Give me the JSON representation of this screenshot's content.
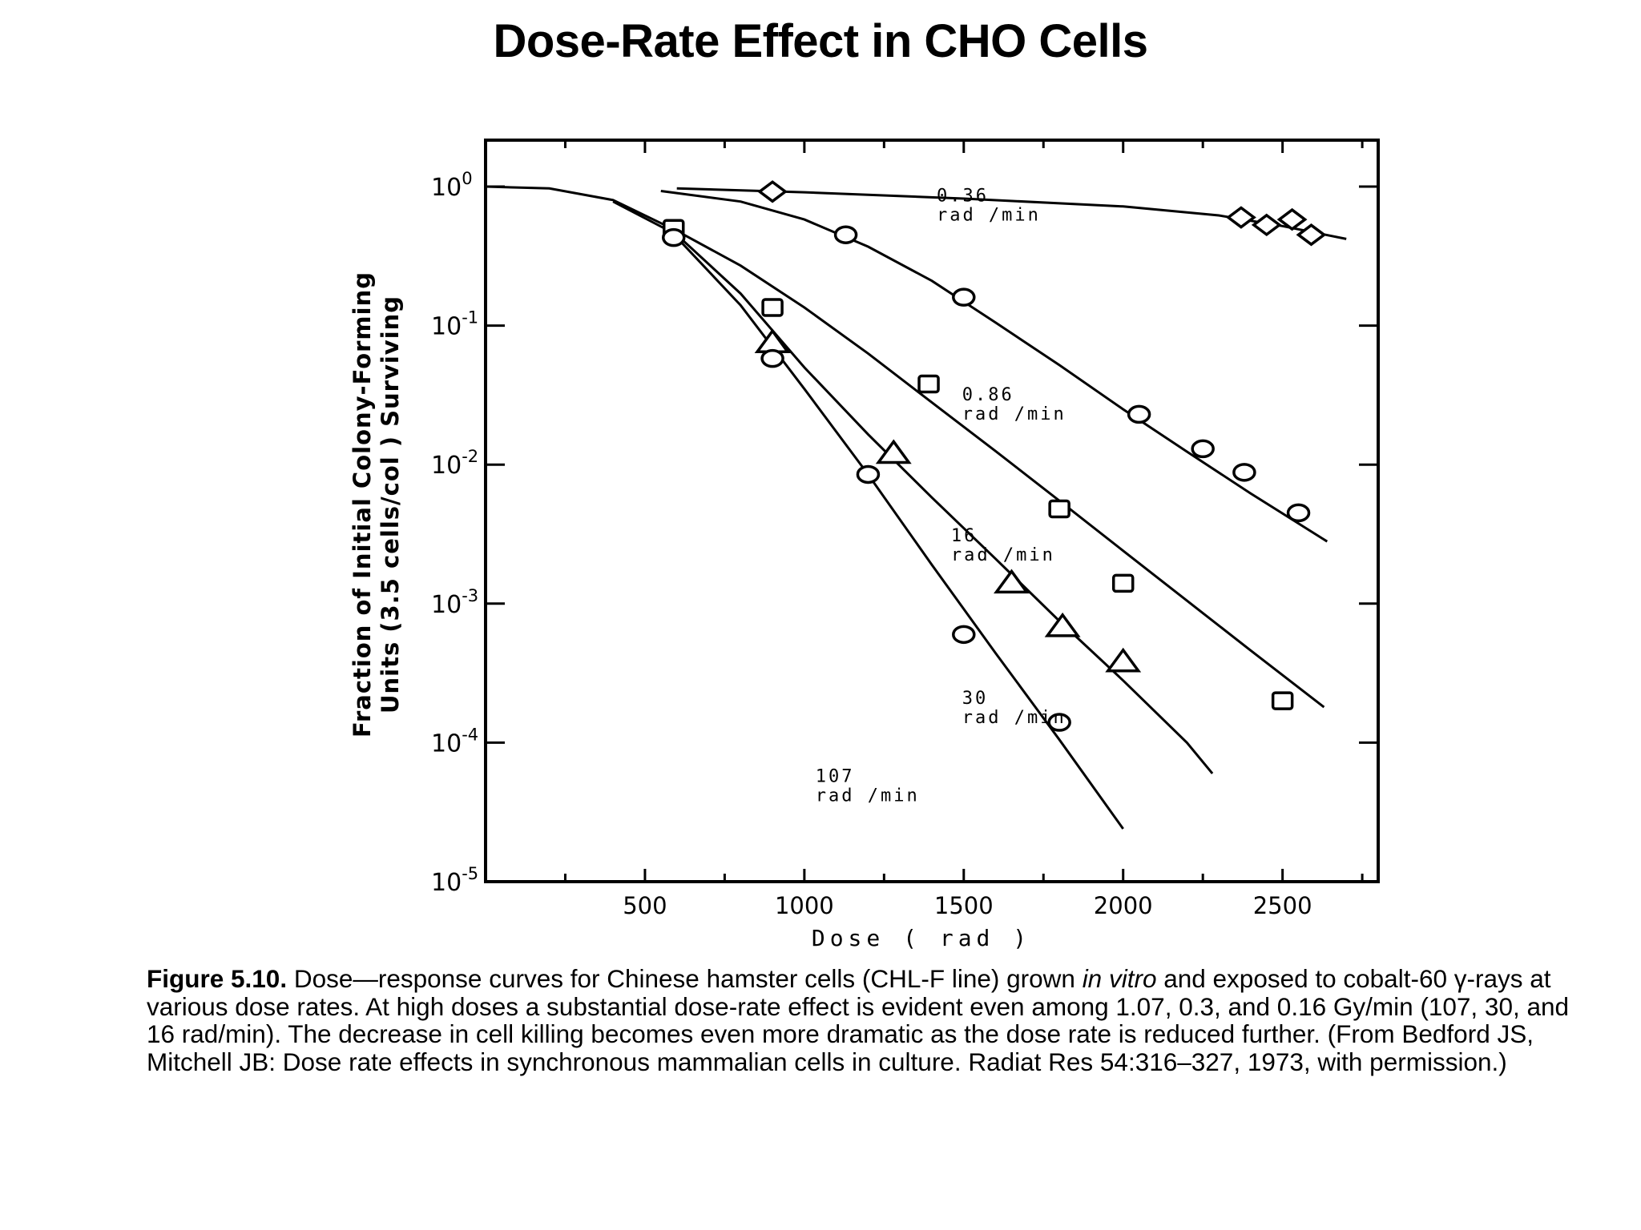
{
  "slide": {
    "title": "Dose-Rate Effect in CHO Cells"
  },
  "caption": {
    "lead": "Figure 5.10.",
    "text_1": " Dose—response curves for Chinese hamster cells (CHL-F line) grown ",
    "italic": "in vitro",
    "text_2": " and exposed to cobalt-60 γ-rays at various dose rates. At high doses a substantial dose-rate effect is evident even among 1.07, 0.3, and 0.16 Gy/min (107, 30, and 16 rad/min). The decrease in cell killing becomes even more dramatic as the dose rate is reduced further. (From Bedford JS, Mitchell JB: Dose rate effects in synchronous mammalian cells in culture. Radiat Res 54:316–327, 1973, with permission.)"
  },
  "chart_data": {
    "type": "scatter",
    "title": "",
    "xlabel": "Dose ( rad )",
    "ylabel_line1": "Fraction of Initial Colony-Forming",
    "ylabel_line2": "Units (3.5 cells/col ) Surviving",
    "xlim": [
      0,
      2800
    ],
    "ylim": [
      1e-05,
      1
    ],
    "yscale": "log",
    "x_ticks": [
      500,
      1000,
      1500,
      2000,
      2500
    ],
    "x_tick_labels": [
      "500",
      "1000",
      "1500",
      "2000",
      "2500"
    ],
    "y_ticks": [
      1,
      0.1,
      0.01,
      0.001,
      0.0001,
      1e-05
    ],
    "y_tick_labels": [
      {
        "base": "10",
        "exp": "0"
      },
      {
        "base": "10",
        "exp": "-1"
      },
      {
        "base": "10",
        "exp": "-2"
      },
      {
        "base": "10",
        "exp": "-3"
      },
      {
        "base": "10",
        "exp": "-4"
      },
      {
        "base": "10",
        "exp": "-5"
      }
    ],
    "legend": "none",
    "grid": false,
    "series": [
      {
        "label_line1": "0.36",
        "label_line2": "rad /min",
        "marker": "diamond",
        "points": [
          [
            900,
            0.92
          ],
          [
            2370,
            0.6
          ],
          [
            2450,
            0.53
          ],
          [
            2530,
            0.58
          ],
          [
            2590,
            0.45
          ]
        ],
        "curve": [
          [
            600,
            0.97
          ],
          [
            1000,
            0.91
          ],
          [
            1500,
            0.82
          ],
          [
            2000,
            0.72
          ],
          [
            2300,
            0.62
          ],
          [
            2500,
            0.52
          ],
          [
            2700,
            0.42
          ]
        ]
      },
      {
        "label_line1": "0.86",
        "label_line2": "rad /min",
        "marker": "circle",
        "points": [
          [
            1130,
            0.45
          ],
          [
            1500,
            0.16
          ],
          [
            2050,
            0.023
          ],
          [
            2250,
            0.013
          ],
          [
            2380,
            0.0088
          ],
          [
            2550,
            0.0045
          ]
        ],
        "curve": [
          [
            550,
            0.93
          ],
          [
            800,
            0.78
          ],
          [
            1000,
            0.58
          ],
          [
            1200,
            0.37
          ],
          [
            1400,
            0.21
          ],
          [
            1600,
            0.105
          ],
          [
            1800,
            0.052
          ],
          [
            2000,
            0.025
          ],
          [
            2200,
            0.0124
          ],
          [
            2400,
            0.0062
          ],
          [
            2640,
            0.0028
          ]
        ]
      },
      {
        "label_line1": "16",
        "label_line2": "rad /min",
        "marker": "square",
        "points": [
          [
            590,
            0.5
          ],
          [
            900,
            0.135
          ],
          [
            1390,
            0.038
          ],
          [
            1800,
            0.0048
          ],
          [
            2000,
            0.0014
          ],
          [
            2500,
            0.0002
          ]
        ],
        "curve": [
          [
            0,
            1.0
          ],
          [
            200,
            0.97
          ],
          [
            400,
            0.8
          ],
          [
            600,
            0.48
          ],
          [
            800,
            0.27
          ],
          [
            1000,
            0.135
          ],
          [
            1200,
            0.063
          ],
          [
            1400,
            0.028
          ],
          [
            1600,
            0.0125
          ],
          [
            1800,
            0.0055
          ],
          [
            2000,
            0.0024
          ],
          [
            2200,
            0.00105
          ],
          [
            2400,
            0.00046
          ],
          [
            2630,
            0.00018
          ]
        ]
      },
      {
        "label_line1": "30",
        "label_line2": "rad /min",
        "marker": "triangle",
        "points": [
          [
            900,
            0.075
          ],
          [
            1280,
            0.012
          ],
          [
            1650,
            0.0014
          ],
          [
            1810,
            0.00068
          ],
          [
            2000,
            0.00038
          ]
        ],
        "curve": [
          [
            400,
            0.78
          ],
          [
            600,
            0.45
          ],
          [
            800,
            0.17
          ],
          [
            1000,
            0.05
          ],
          [
            1200,
            0.0165
          ],
          [
            1400,
            0.0058
          ],
          [
            1600,
            0.0021
          ],
          [
            1800,
            0.00075
          ],
          [
            2000,
            0.00028
          ],
          [
            2200,
            0.0001
          ],
          [
            2280,
            6e-05
          ]
        ]
      },
      {
        "label_line1": "107",
        "label_line2": "rad /min",
        "marker": "circle",
        "points": [
          [
            590,
            0.43
          ],
          [
            900,
            0.058
          ],
          [
            1200,
            0.0085
          ],
          [
            1500,
            0.0006
          ],
          [
            1800,
            0.00014
          ]
        ],
        "curve": [
          [
            600,
            0.43
          ],
          [
            800,
            0.14
          ],
          [
            1000,
            0.035
          ],
          [
            1200,
            0.0085
          ],
          [
            1400,
            0.0019
          ],
          [
            1600,
            0.00044
          ],
          [
            1800,
            0.000105
          ],
          [
            2000,
            2.4e-05
          ]
        ]
      }
    ]
  }
}
